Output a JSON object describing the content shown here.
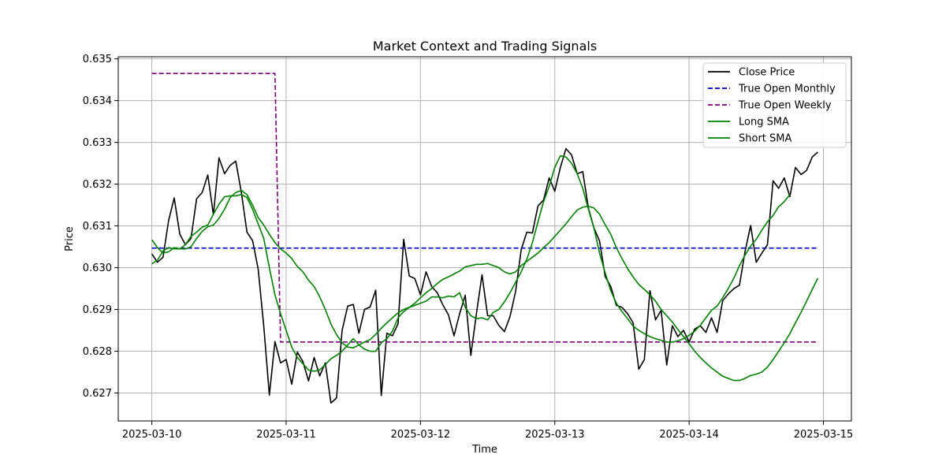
{
  "chart_data": {
    "type": "line",
    "title": "Market Context and Trading Signals",
    "xlabel": "Time",
    "ylabel": "Price",
    "x_ticks": [
      "2025-03-10",
      "2025-03-11",
      "2025-03-12",
      "2025-03-13",
      "2025-03-14",
      "2025-03-15"
    ],
    "y_ticks": [
      "0.627",
      "0.628",
      "0.629",
      "0.630",
      "0.631",
      "0.632",
      "0.633",
      "0.634",
      "0.635"
    ],
    "xlim": [
      "2025-03-09T18:00",
      "2025-03-15T05:00"
    ],
    "ylim": [
      0.62633,
      0.63505
    ],
    "grid": true,
    "legend_position": "upper right",
    "x_start": "2025-03-10T00:00",
    "x_step_hours": 1,
    "series": [
      {
        "name": "Close Price",
        "color": "#000000",
        "style": "solid",
        "values": [
          0.63033,
          0.63013,
          0.63025,
          0.63113,
          0.63167,
          0.6308,
          0.63055,
          0.6307,
          0.63165,
          0.6318,
          0.63222,
          0.63127,
          0.63263,
          0.63225,
          0.63245,
          0.63255,
          0.6318,
          0.63085,
          0.63065,
          0.62997,
          0.6286,
          0.62695,
          0.62823,
          0.62772,
          0.6278,
          0.62721,
          0.62798,
          0.62775,
          0.62729,
          0.62785,
          0.62741,
          0.62772,
          0.62676,
          0.62688,
          0.6285,
          0.62908,
          0.62912,
          0.62843,
          0.629,
          0.62906,
          0.62946,
          0.62694,
          0.62843,
          0.62837,
          0.62866,
          0.63068,
          0.6298,
          0.62974,
          0.62935,
          0.6299,
          0.62955,
          0.6294,
          0.62911,
          0.62887,
          0.62837,
          0.6289,
          0.62934,
          0.6279,
          0.6289,
          0.62983,
          0.62885,
          0.62885,
          0.62862,
          0.62847,
          0.62883,
          0.62943,
          0.63043,
          0.63085,
          0.63083,
          0.63148,
          0.63162,
          0.63215,
          0.63183,
          0.6324,
          0.63285,
          0.6327,
          0.63225,
          0.6323,
          0.63143,
          0.63095,
          0.63064,
          0.62979,
          0.62955,
          0.6291,
          0.62905,
          0.6289,
          0.62868,
          0.62757,
          0.6278,
          0.62945,
          0.62875,
          0.62898,
          0.62767,
          0.62861,
          0.62835,
          0.6285,
          0.62822,
          0.62853,
          0.62861,
          0.62845,
          0.6288,
          0.62845,
          0.62921,
          0.62937,
          0.6295,
          0.62958,
          0.63039,
          0.63101,
          0.63013,
          0.63035,
          0.63055,
          0.63208,
          0.6319,
          0.63215,
          0.6317,
          0.6324,
          0.63223,
          0.63233,
          0.63265,
          0.63277
        ]
      },
      {
        "name": "True Open Monthly",
        "color": "#0000cc",
        "style": "dashed",
        "constant": 0.63047
      },
      {
        "name": "True Open Weekly",
        "color": "#800080",
        "style": "dashed",
        "segments": [
          {
            "from": "2025-03-10T00:00",
            "to": "2025-03-10T22:00",
            "value": 0.63465
          },
          {
            "from": "2025-03-10T23:00",
            "to": "2025-03-14T23:00",
            "value": 0.62822
          }
        ]
      },
      {
        "name": "Long SMA",
        "color": "#008000",
        "style": "solid",
        "values": [
          0.63067,
          0.63048,
          0.63035,
          0.63038,
          0.63048,
          0.63045,
          0.63045,
          0.6305,
          0.6307,
          0.63087,
          0.63098,
          0.63102,
          0.63118,
          0.6314,
          0.63168,
          0.6318,
          0.63185,
          0.63175,
          0.6315,
          0.6312,
          0.63102,
          0.6308,
          0.6306,
          0.63045,
          0.63035,
          0.63022,
          0.63003,
          0.6299,
          0.6297,
          0.62955,
          0.6293,
          0.629,
          0.62865,
          0.6284,
          0.6282,
          0.6281,
          0.62808,
          0.62815,
          0.62822,
          0.62828,
          0.6284,
          0.62855,
          0.62868,
          0.6288,
          0.62892,
          0.629,
          0.62905,
          0.62915,
          0.62928,
          0.6294,
          0.6295,
          0.62962,
          0.62972,
          0.62978,
          0.62985,
          0.62992,
          0.63002,
          0.63005,
          0.63008,
          0.63008,
          0.6301,
          0.63005,
          0.63,
          0.6299,
          0.62985,
          0.6299,
          0.63005,
          0.63015,
          0.63025,
          0.63035,
          0.63048,
          0.6306,
          0.63075,
          0.6309,
          0.63105,
          0.63122,
          0.63138,
          0.63145,
          0.63147,
          0.63143,
          0.63128,
          0.63103,
          0.6308,
          0.63048,
          0.63022,
          0.62998,
          0.62978,
          0.6296,
          0.62948,
          0.62935,
          0.6292,
          0.629,
          0.62885,
          0.6287,
          0.62852,
          0.62835,
          0.62818,
          0.628,
          0.62785,
          0.62772,
          0.6276,
          0.6275,
          0.6274,
          0.62735,
          0.6273,
          0.6273,
          0.62735,
          0.62742,
          0.62745,
          0.6275,
          0.62762,
          0.6278,
          0.628,
          0.6282,
          0.62842,
          0.62868,
          0.62893,
          0.6292,
          0.62948,
          0.62975
        ]
      },
      {
        "name": "Short SMA",
        "color": "#008000",
        "style": "solid",
        "values": [
          0.63009,
          0.63018,
          0.6304,
          0.63048,
          0.63045,
          0.63045,
          0.63055,
          0.63075,
          0.63085,
          0.63097,
          0.63102,
          0.63128,
          0.63152,
          0.6317,
          0.63172,
          0.63172,
          0.63175,
          0.63168,
          0.6314,
          0.63105,
          0.6307,
          0.63,
          0.62935,
          0.6289,
          0.6285,
          0.6281,
          0.62785,
          0.6277,
          0.62755,
          0.62752,
          0.62755,
          0.62768,
          0.62782,
          0.6279,
          0.628,
          0.62815,
          0.6283,
          0.62815,
          0.62805,
          0.628,
          0.628,
          0.6282,
          0.6283,
          0.62848,
          0.6288,
          0.62895,
          0.62905,
          0.6291,
          0.62915,
          0.6292,
          0.6293,
          0.6293,
          0.62928,
          0.62932,
          0.6293,
          0.6294,
          0.62905,
          0.62885,
          0.62878,
          0.6288,
          0.62875,
          0.62893,
          0.629,
          0.62918,
          0.6294,
          0.62965,
          0.6299,
          0.6302,
          0.6306,
          0.6311,
          0.63158,
          0.63195,
          0.6324,
          0.63268,
          0.63265,
          0.6325,
          0.63225,
          0.6319,
          0.6314,
          0.63095,
          0.63035,
          0.62988,
          0.62945,
          0.62915,
          0.62895,
          0.62878,
          0.6286,
          0.6285,
          0.62842,
          0.62835,
          0.6283,
          0.62826,
          0.62822,
          0.62822,
          0.62825,
          0.6283,
          0.62838,
          0.62848,
          0.62862,
          0.6288,
          0.62898,
          0.62908,
          0.62928,
          0.6295,
          0.62975,
          0.63005,
          0.6303,
          0.63052,
          0.63068,
          0.6309,
          0.6311,
          0.63125,
          0.63146,
          0.63158,
          0.63175
        ]
      }
    ]
  }
}
